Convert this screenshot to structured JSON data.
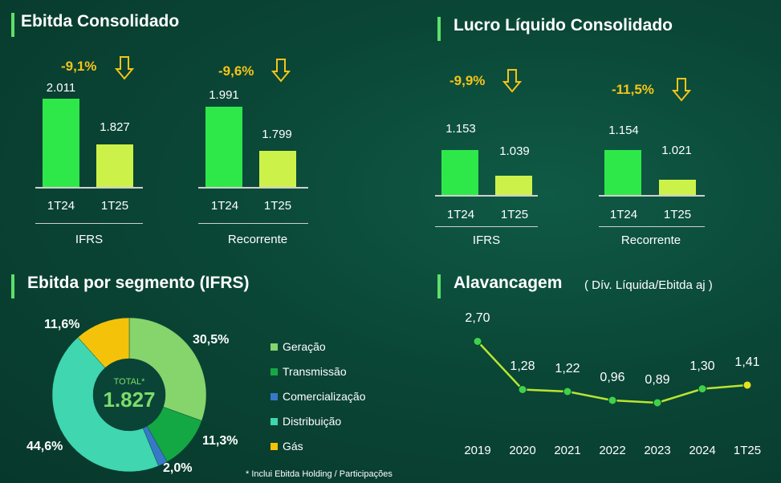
{
  "panels": {
    "ebitda": {
      "title": "Ebitda Consolidado",
      "groups": [
        {
          "label": "IFRS",
          "change": "-9,1%",
          "bars": [
            {
              "period": "1T24",
              "value": 2011,
              "label": "2.011"
            },
            {
              "period": "1T25",
              "value": 1827,
              "label": "1.827"
            }
          ]
        },
        {
          "label": "Recorrente",
          "change": "-9,6%",
          "bars": [
            {
              "period": "1T24",
              "value": 1991,
              "label": "1.991"
            },
            {
              "period": "1T25",
              "value": 1799,
              "label": "1.799"
            }
          ]
        }
      ]
    },
    "lucro": {
      "title": "Lucro Líquido Consolidado",
      "groups": [
        {
          "label": "IFRS",
          "change": "-9,9%",
          "bars": [
            {
              "period": "1T24",
              "value": 1153,
              "label": "1.153"
            },
            {
              "period": "1T25",
              "value": 1039,
              "label": "1.039"
            }
          ]
        },
        {
          "label": "Recorrente",
          "change": "-11,5%",
          "bars": [
            {
              "period": "1T24",
              "value": 1154,
              "label": "1.154"
            },
            {
              "period": "1T25",
              "value": 1021,
              "label": "1.021"
            }
          ]
        }
      ]
    },
    "segmento": {
      "title": "Ebitda por segmento (IFRS)",
      "center_label": "TOTAL*",
      "center_value": "1.827",
      "footnote": "* Inclui Ebitda Holding / Participações"
    },
    "alavancagem": {
      "title": "Alavancagem",
      "note": "( Dív. Líquida/Ebitda aj )"
    }
  },
  "colors": {
    "bar_1t24": "#2ee84a",
    "bar_1t25": "#ccf24a",
    "accent": "#5de06a",
    "change": "#f5c518",
    "line": "#b8e630",
    "marker": "#3fd14a",
    "marker_last": "#e8e020"
  },
  "chart_data": [
    {
      "type": "bar",
      "title": "Ebitda Consolidado",
      "categories": [
        "IFRS",
        "Recorrente"
      ],
      "series": [
        {
          "name": "1T24",
          "values": [
            2011,
            1991
          ]
        },
        {
          "name": "1T25",
          "values": [
            1827,
            1799
          ]
        }
      ],
      "annotations": [
        "-9,1%",
        "-9,6%"
      ]
    },
    {
      "type": "bar",
      "title": "Lucro Líquido Consolidado",
      "categories": [
        "IFRS",
        "Recorrente"
      ],
      "series": [
        {
          "name": "1T24",
          "values": [
            1153,
            1154
          ]
        },
        {
          "name": "1T25",
          "values": [
            1039,
            1021
          ]
        }
      ],
      "annotations": [
        "-9,9%",
        "-11,5%"
      ]
    },
    {
      "type": "pie",
      "title": "Ebitda por segmento (IFRS)",
      "slices": [
        {
          "name": "Geração",
          "value": 30.5,
          "label": "30,5%",
          "color": "#86d46c"
        },
        {
          "name": "Transmissão",
          "value": 11.3,
          "label": "11,3%",
          "color": "#14a844"
        },
        {
          "name": "Comercialização",
          "value": 2.0,
          "label": "2,0%",
          "color": "#3878c8"
        },
        {
          "name": "Distribuição",
          "value": 44.6,
          "label": "44,6%",
          "color": "#3fd6b0"
        },
        {
          "name": "Gás",
          "value": 11.6,
          "label": "11,6%",
          "color": "#f5c20a"
        }
      ]
    },
    {
      "type": "line",
      "title": "Alavancagem",
      "x": [
        "2019",
        "2020",
        "2021",
        "2022",
        "2023",
        "2024",
        "1T25"
      ],
      "values": [
        2.7,
        1.28,
        1.22,
        0.96,
        0.89,
        1.3,
        1.41
      ],
      "labels": [
        "2,70",
        "1,28",
        "1,22",
        "0,96",
        "0,89",
        "1,30",
        "1,41"
      ]
    }
  ]
}
